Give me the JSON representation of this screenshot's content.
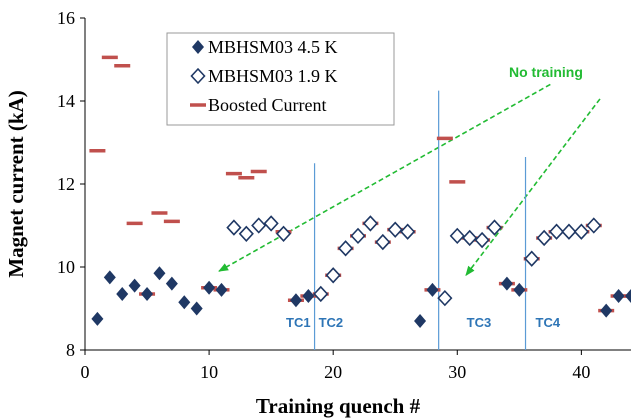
{
  "chart_data": {
    "type": "scatter",
    "xlabel": "Training quench #",
    "ylabel": "Magnet current (kA)",
    "xlim": [
      0,
      44
    ],
    "ylim": [
      8,
      16
    ],
    "xticks": [
      0,
      10,
      20,
      30,
      40
    ],
    "yticks": [
      8,
      10,
      12,
      14,
      16
    ],
    "grid": false,
    "legend_position": "top-left",
    "series": [
      {
        "name": "MBHSM03 4.5 K",
        "marker": "filled-diamond",
        "color": "#1f3864",
        "points": [
          [
            1,
            8.75
          ],
          [
            2,
            9.75
          ],
          [
            3,
            9.35
          ],
          [
            4,
            9.55
          ],
          [
            5,
            9.35
          ],
          [
            6,
            9.85
          ],
          [
            7,
            9.6
          ],
          [
            8,
            9.15
          ],
          [
            9,
            9.0
          ],
          [
            10,
            9.5
          ],
          [
            11,
            9.45
          ],
          [
            17,
            9.2
          ],
          [
            18,
            9.3
          ],
          [
            27,
            8.7
          ],
          [
            28,
            9.45
          ],
          [
            34,
            9.6
          ],
          [
            35,
            9.45
          ],
          [
            42,
            8.95
          ],
          [
            43,
            9.3
          ],
          [
            44,
            9.3
          ]
        ]
      },
      {
        "name": "MBHSM03 1.9 K",
        "marker": "open-diamond",
        "color": "#1f3864",
        "points": [
          [
            12,
            10.95
          ],
          [
            13,
            10.8
          ],
          [
            14,
            11.0
          ],
          [
            15,
            11.05
          ],
          [
            16,
            10.8
          ],
          [
            19,
            9.35
          ],
          [
            20,
            9.8
          ],
          [
            21,
            10.45
          ],
          [
            22,
            10.75
          ],
          [
            23,
            11.05
          ],
          [
            24,
            10.6
          ],
          [
            25,
            10.9
          ],
          [
            26,
            10.85
          ],
          [
            29,
            9.25
          ],
          [
            30,
            10.75
          ],
          [
            31,
            10.7
          ],
          [
            32,
            10.65
          ],
          [
            33,
            10.95
          ],
          [
            36,
            10.2
          ],
          [
            37,
            10.7
          ],
          [
            38,
            10.85
          ],
          [
            39,
            10.85
          ],
          [
            40,
            10.85
          ],
          [
            41,
            11.0
          ]
        ]
      },
      {
        "name": "Boosted Current",
        "marker": "dash",
        "color": "#c0504d",
        "points": [
          [
            1,
            12.8
          ],
          [
            2,
            15.05
          ],
          [
            3,
            14.85
          ],
          [
            4,
            11.05
          ],
          [
            6,
            11.3
          ],
          [
            7,
            11.1
          ],
          [
            12,
            12.25
          ],
          [
            13,
            12.15
          ],
          [
            14,
            12.3
          ],
          [
            29,
            13.1
          ],
          [
            30,
            12.05
          ],
          [
            5,
            9.35
          ],
          [
            10,
            9.5
          ],
          [
            11,
            9.45
          ],
          [
            16,
            10.85
          ],
          [
            17,
            9.2
          ],
          [
            18,
            9.3
          ],
          [
            19,
            9.35
          ],
          [
            20,
            9.8
          ],
          [
            21,
            10.45
          ],
          [
            22,
            10.75
          ],
          [
            23,
            11.05
          ],
          [
            24,
            10.6
          ],
          [
            25,
            10.9
          ],
          [
            26,
            10.85
          ],
          [
            28,
            9.45
          ],
          [
            31,
            10.7
          ],
          [
            32,
            10.65
          ],
          [
            33,
            10.95
          ],
          [
            34,
            9.6
          ],
          [
            35,
            9.45
          ],
          [
            36,
            10.2
          ],
          [
            37,
            10.7
          ],
          [
            38,
            10.85
          ],
          [
            39,
            10.85
          ],
          [
            40,
            10.85
          ],
          [
            41,
            11.0
          ],
          [
            42,
            8.95
          ],
          [
            43,
            9.3
          ],
          [
            44,
            9.3
          ]
        ]
      }
    ],
    "vertical_lines": [
      {
        "x": 18.5,
        "label": "TC1",
        "label_side": "left",
        "y_top": 12.5
      },
      {
        "x": 18.5,
        "label": "TC2",
        "label_side": "right",
        "y_top": 12.5
      },
      {
        "x": 28.5,
        "label": "TC3",
        "label_side": "right",
        "y_top": 14.25
      },
      {
        "x": 35.5,
        "label": "TC4",
        "label_side": "right",
        "y_top": 12.65
      }
    ],
    "annotation": {
      "text": "No training",
      "color": "#22bb33",
      "arrows": [
        {
          "from": [
            37.5,
            14.4
          ],
          "to": [
            10.8,
            9.9
          ]
        },
        {
          "from": [
            41.5,
            14.05
          ],
          "to": [
            30.7,
            9.8
          ]
        }
      ]
    }
  }
}
